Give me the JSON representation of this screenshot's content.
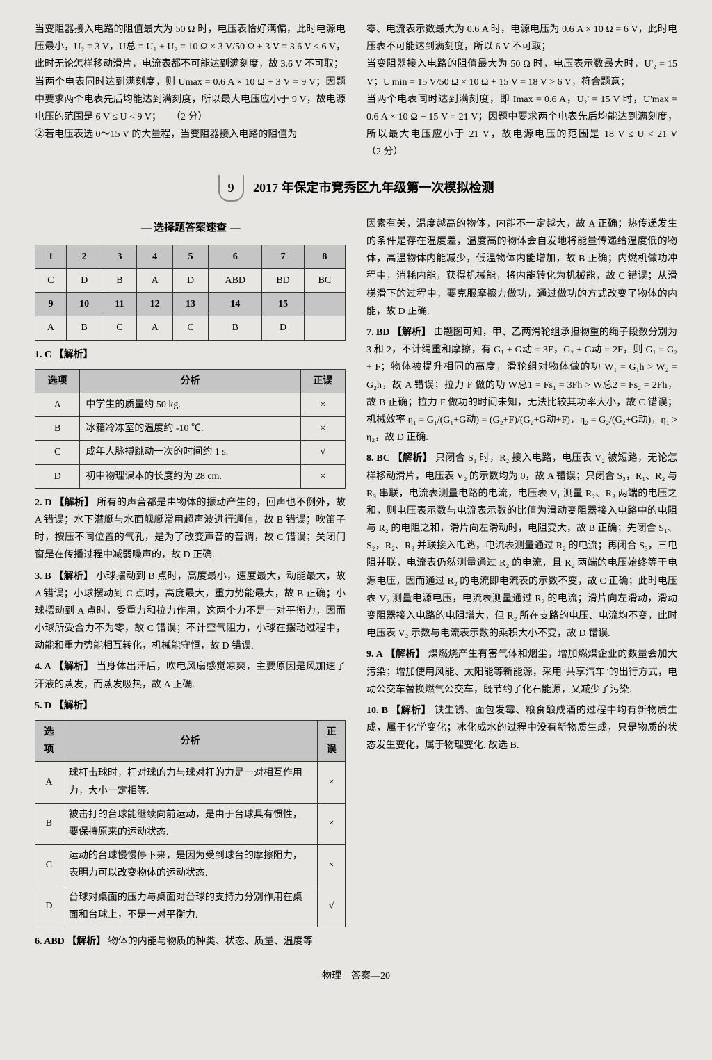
{
  "top": {
    "left": {
      "p1": "当变阻器接入电路的阻值最大为 50 Ω 时，电压表恰好满偏，此时电源电压最小，U₂ = 3 V，U总 = U₁ + U₂ = 10 Ω × 3 V/50 Ω + 3 V = 3.6 V < 6 V，此时无论怎样移动滑片，电流表都不可能达到满刻度，故 3.6 V 不可取；",
      "p2": "当两个电表同时达到满刻度，则 Umax = 0.6 A × 10 Ω + 3 V = 9 V；因题中要求两个电表先后均能达到满刻度，所以最大电压应小于 9 V，故电源电压的范围是 6 V ≤ U < 9 V；　　（2 分）",
      "p3": "②若电压表选 0～15 V 的大量程，当变阻器接入电路的阻值为"
    },
    "right": {
      "p1": "零、电流表示数最大为 0.6 A 时，电源电压为 0.6 A × 10 Ω = 6 V，此时电压表不可能达到满刻度，所以 6 V 不可取；",
      "p2": "当变阻器接入电路的阻值最大为 50 Ω 时，电压表示数最大时，U'₂ = 15 V；U'min = 15 V/50 Ω × 10 Ω + 15 V = 18 V > 6 V，符合题意；",
      "p3": "当两个电表同时达到满刻度，即 Imax = 0.6 A，U₂' = 15 V 时，U'max = 0.6 A × 10 Ω + 15 V = 21 V；因题中要求两个电表先后均能达到满刻度，所以最大电压应小于 21 V，故电源电压的范围是 18 V ≤ U < 21 V　　　　　　　　（2 分）"
    }
  },
  "section": {
    "num": "9",
    "title": "2017 年保定市竞秀区九年级第一次模拟检测"
  },
  "subsection": "选择题答案速查",
  "answerTable": {
    "header1": [
      "1",
      "2",
      "3",
      "4",
      "5",
      "6",
      "7",
      "8"
    ],
    "row1": [
      "C",
      "D",
      "B",
      "A",
      "D",
      "ABD",
      "BD",
      "BC"
    ],
    "header2": [
      "9",
      "10",
      "11",
      "12",
      "13",
      "14",
      "15",
      ""
    ],
    "row2": [
      "A",
      "B",
      "C",
      "A",
      "C",
      "B",
      "D",
      ""
    ]
  },
  "q1": {
    "num": "1. C",
    "tag": "【解析】",
    "header": [
      "选项",
      "分析",
      "正误"
    ],
    "rows": [
      [
        "A",
        "中学生的质量约 50 kg.",
        "×"
      ],
      [
        "B",
        "冰箱冷冻室的温度约 -10 ℃.",
        "×"
      ],
      [
        "C",
        "成年人脉搏跳动一次的时间约 1 s.",
        "√"
      ],
      [
        "D",
        "初中物理课本的长度约为 28 cm.",
        "×"
      ]
    ]
  },
  "q2": {
    "num": "2. D",
    "tag": "【解析】",
    "text": "所有的声音都是由物体的振动产生的，回声也不例外，故 A 错误；水下潜艇与水面舰艇常用超声波进行通信，故 B 错误；吹笛子时，按压不同位置的气孔，是为了改变声音的音调，故 C 错误；关闭门窗是在传播过程中减弱噪声的，故 D 正确."
  },
  "q3": {
    "num": "3. B",
    "tag": "【解析】",
    "text": "小球摆动到 B 点时，高度最小，速度最大，动能最大，故 A 错误；小球摆动到 C 点时，高度最大，重力势能最大，故 B 正确；小球摆动到 A 点时，受重力和拉力作用，这两个力不是一对平衡力，因而小球所受合力不为零，故 C 错误；不计空气阻力，小球在摆动过程中，动能和重力势能相互转化，机械能守恒，故 D 错误."
  },
  "q4": {
    "num": "4. A",
    "tag": "【解析】",
    "text": "当身体出汗后，吹电风扇感觉凉爽，主要原因是风加速了汗液的蒸发，而蒸发吸热，故 A 正确."
  },
  "q5": {
    "num": "5. D",
    "tag": "【解析】",
    "header": [
      "选项",
      "分析",
      "正误"
    ],
    "rows": [
      [
        "A",
        "球杆击球时，杆对球的力与球对杆的力是一对相互作用力，大小一定相等.",
        "×"
      ],
      [
        "B",
        "被击打的台球能继续向前运动，是由于台球具有惯性，要保持原来的运动状态.",
        "×"
      ],
      [
        "C",
        "运动的台球慢慢停下来，是因为受到球台的摩擦阻力，表明力可以改变物体的运动状态.",
        "×"
      ],
      [
        "D",
        "台球对桌面的压力与桌面对台球的支持力分别作用在桌面和台球上，不是一对平衡力.",
        "√"
      ]
    ]
  },
  "q6": {
    "num": "6. ABD",
    "tag": "【解析】",
    "text1": "物体的内能与物质的种类、状态、质量、温度等",
    "text2": "因素有关，温度越高的物体，内能不一定越大，故 A 正确；热传递发生的条件是存在温度差，温度高的物体会自发地将能量传递给温度低的物体，高温物体内能减少，低温物体内能增加，故 B 正确；内燃机做功冲程中，消耗内能，获得机械能，将内能转化为机械能，故 C 错误；从滑梯滑下的过程中，要克服摩擦力做功，通过做功的方式改变了物体的内能，故 D 正确."
  },
  "q7": {
    "num": "7. BD",
    "tag": "【解析】",
    "text": "由题图可知，甲、乙两滑轮组承担物重的绳子段数分别为 3 和 2，不计绳重和摩擦，有 G₁ + G动 = 3F，G₂ + G动 = 2F，则 G₁ = G₂ + F；物体被提升相同的高度，滑轮组对物体做的功 W₁ = G₁h > W₂ = G₂h，故 A 错误；拉力 F 做的功 W总1 = Fs₁ = 3Fh > W总2 = Fs₂ = 2Fh，故 B 正确；拉力 F 做功的时间未知，无法比较其功率大小，故 C 错误；机械效率 η₁ = G₁/(G₁+G动) = (G₂+F)/(G₂+G动+F)，η₂ = G₂/(G₂+G动)，η₁ > η₂，故 D 正确."
  },
  "q8": {
    "num": "8. BC",
    "tag": "【解析】",
    "text": "只闭合 S₁ 时，R₂ 接入电路，电压表 V₂ 被短路，无论怎样移动滑片，电压表 V₂ 的示数均为 0，故 A 错误；只闭合 S₃，R₁、R₂ 与 R₃ 串联，电流表测量电路的电流，电压表 V₁ 测量 R₂、R₃ 两端的电压之和，则电压表示数与电流表示数的比值为滑动变阻器接入电路中的电阻与 R₂ 的电阻之和，滑片向左滑动时，电阻变大，故 B 正确；先闭合 S₁、S₂，R₂、R₃ 并联接入电路，电流表测量通过 R₂ 的电流；再闭合 S₃，三电阻并联，电流表仍然测量通过 R₂ 的电流，且 R₂ 两端的电压始终等于电源电压，因而通过 R₂ 的电流即电流表的示数不变，故 C 正确；此时电压表 V₂ 测量电源电压，电流表测量通过 R₂ 的电流；滑片向左滑动，滑动变阻器接入电路的电阻增大，但 R₂ 所在支路的电压、电流均不变，此时电压表 V₂ 示数与电流表示数的乘积大小不变，故 D 错误."
  },
  "q9": {
    "num": "9. A",
    "tag": "【解析】",
    "text": "煤燃烧产生有害气体和烟尘，增加燃煤企业的数量会加大污染；增加使用风能、太阳能等新能源，采用\"共享汽车\"的出行方式，电动公交车替换燃气公交车，既节约了化石能源，又减少了污染."
  },
  "q10": {
    "num": "10. B",
    "tag": "【解析】",
    "text": "铁生锈、面包发霉、粮食酿成酒的过程中均有新物质生成，属于化学变化；冰化成水的过程中没有新物质生成，只是物质的状态发生变化，属于物理变化. 故选 B."
  },
  "footer": "物理　答案—20"
}
